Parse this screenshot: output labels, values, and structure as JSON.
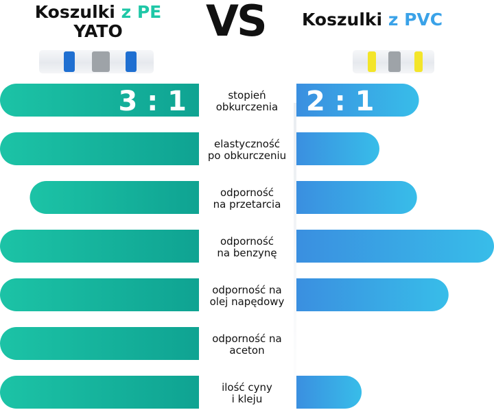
{
  "header": {
    "left_line1_dark": "Koszulki",
    "left_line1_accent": "z PE",
    "left_line2": "YATO",
    "vs": "VS",
    "right_dark": "Koszulki",
    "right_accent": "z PVC"
  },
  "colors": {
    "left_bar_start": "#1cc3a6",
    "left_bar_end": "#0fa392",
    "right_bar_start": "#3a8fe0",
    "right_bar_end": "#38bde9",
    "left_accent": "#1fc7a7",
    "right_accent": "#3aa2e8",
    "left_sleeve_band": "#1f6fd1",
    "right_sleeve_band": "#f3e52a",
    "sleeve_center": "#9ea3a8"
  },
  "chart_data": {
    "type": "bar",
    "orientation": "horizontal-diverging",
    "categories": [
      [
        "stopień",
        "obkurczenia"
      ],
      [
        "elastyczność",
        "po obkurczeniu"
      ],
      [
        "odporność",
        "na przetarcia"
      ],
      [
        "odporność",
        "na benzynę"
      ],
      [
        "odporność na",
        "olej napędowy"
      ],
      [
        "odporność na",
        "aceton"
      ],
      [
        "ilość cyny",
        "i kleju"
      ]
    ],
    "series": [
      {
        "name": "Koszulki z PE YATO",
        "side": "left",
        "values": [
          1.0,
          1.0,
          0.85,
          1.0,
          1.0,
          1.0,
          1.0
        ],
        "labels": [
          "3 : 1",
          "",
          "",
          "",
          "",
          "",
          ""
        ]
      },
      {
        "name": "Koszulki z PVC",
        "side": "right",
        "values": [
          0.62,
          0.42,
          0.61,
          1.0,
          0.77,
          0.0,
          0.33
        ],
        "labels": [
          "2 : 1",
          "",
          "",
          "",
          "",
          "",
          ""
        ]
      }
    ],
    "xlim": [
      0,
      1
    ],
    "legend": "none",
    "grid": false
  }
}
